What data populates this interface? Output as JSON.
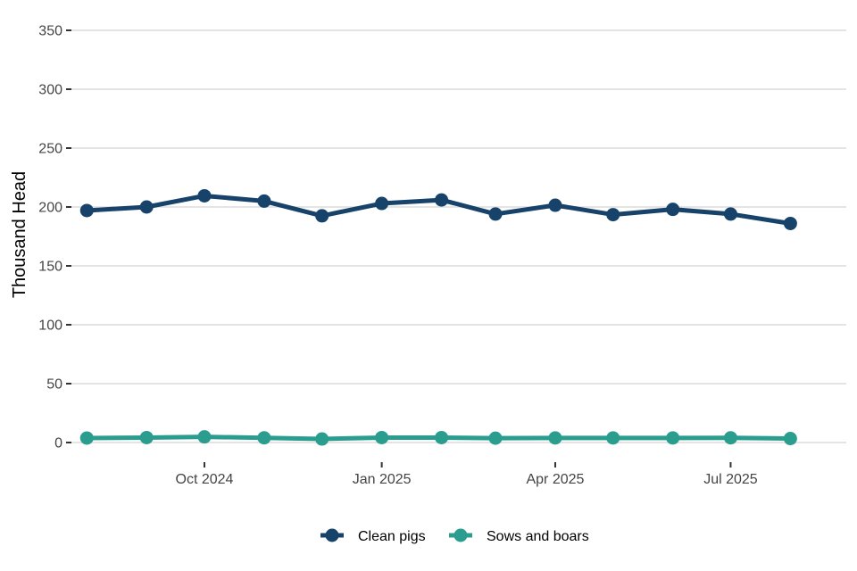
{
  "chart_data": {
    "type": "line",
    "title": "",
    "xlabel": "",
    "ylabel": "Thousand Head",
    "x": [
      "2024-08-01",
      "2024-09-01",
      "2024-10-01",
      "2024-11-01",
      "2024-12-01",
      "2025-01-01",
      "2025-02-01",
      "2025-03-01",
      "2025-04-01",
      "2025-05-01",
      "2025-06-01",
      "2025-07-01",
      "2025-08-01"
    ],
    "x_ticks": [
      {
        "date": "2024-10-01",
        "label": "Oct 2024"
      },
      {
        "date": "2025-01-01",
        "label": "Jan 2025"
      },
      {
        "date": "2025-04-01",
        "label": "Apr 2025"
      },
      {
        "date": "2025-07-01",
        "label": "Jul 2025"
      }
    ],
    "xlim": [
      "2024-07-24",
      "2025-08-30"
    ],
    "y_ticks": [
      0,
      50,
      100,
      150,
      200,
      250,
      300,
      350
    ],
    "ylim": [
      0,
      350
    ],
    "grid": "horizontal",
    "legend_position": "bottom",
    "series": [
      {
        "name": "Clean pigs",
        "color": "#17426a",
        "values": [
          197,
          200,
          209.5,
          205,
          192.5,
          203,
          206,
          194,
          201.5,
          193.5,
          198,
          194,
          186
        ]
      },
      {
        "name": "Sows and boars",
        "color": "#2a9d8f",
        "values": [
          3.8,
          4.2,
          4.8,
          4.0,
          3.0,
          4.2,
          4.2,
          3.7,
          3.9,
          3.9,
          3.9,
          4.0,
          3.4
        ]
      }
    ]
  }
}
